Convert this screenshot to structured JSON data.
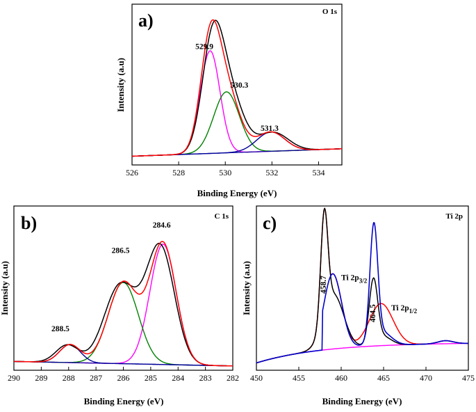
{
  "chart_data": [
    {
      "type": "line",
      "panel": "a)",
      "title": "O 1s",
      "xlabel": "Binding Energy (eV)",
      "ylabel": "Intensity (a.u)",
      "xlim": [
        526,
        535
      ],
      "ylim": [
        0,
        100
      ],
      "x_reversed": false,
      "xticks": [
        526,
        528,
        530,
        532,
        534
      ],
      "tick_labels": [
        "526",
        "528",
        "530",
        "532",
        "534"
      ],
      "background": {
        "start": 4,
        "end": 9
      },
      "components": [
        {
          "name": "529.9",
          "color": "#ff00ff",
          "center": 529.35,
          "amplitude": 69,
          "sigma": 0.42
        },
        {
          "name": "530.3",
          "color": "#008000",
          "center": 530.05,
          "amplitude": 41,
          "sigma": 0.55
        },
        {
          "name": "531.3",
          "color": "#000099",
          "center": 531.95,
          "amplitude": 13,
          "sigma": 0.6
        }
      ],
      "envelope_color": "#ff0000",
      "raw_color": "#000000",
      "raw_offset": 0.1,
      "annotations": [
        {
          "text": "529.9",
          "x": 529.1,
          "y": 76
        },
        {
          "text": "530.3",
          "x": 530.6,
          "y": 50
        },
        {
          "text": "531.3",
          "x": 531.9,
          "y": 21
        }
      ]
    },
    {
      "type": "line",
      "panel": "b)",
      "title": "C 1s",
      "xlabel": "Binding Energy (eV)",
      "ylabel": "Intensity (a.u)",
      "xlim": [
        290,
        282
      ],
      "ylim": [
        0,
        100
      ],
      "x_reversed": true,
      "xticks": [
        290,
        289,
        288,
        287,
        286,
        285,
        284,
        283,
        282
      ],
      "tick_labels": [
        "290",
        "289",
        "288",
        "287",
        "286",
        "285",
        "284",
        "283",
        "282"
      ],
      "background": {
        "start": 4,
        "end": 1
      },
      "components": [
        {
          "name": "284.6",
          "color": "#ff00ff",
          "center": 284.55,
          "amplitude": 80,
          "sigma": 0.48
        },
        {
          "name": "286.5",
          "color": "#008000",
          "center": 286.0,
          "amplitude": 54,
          "sigma": 0.55
        },
        {
          "name": "288.5",
          "color": "#000099",
          "center": 287.95,
          "amplitude": 12,
          "sigma": 0.38
        }
      ],
      "envelope_color": "#ff0000",
      "raw_color": "#000000",
      "raw_offset": 0.1,
      "annotations": [
        {
          "text": "284.6",
          "x": 284.6,
          "y": 93
        },
        {
          "text": "286.5",
          "x": 286.1,
          "y": 76
        },
        {
          "text": "288.5",
          "x": 288.3,
          "y": 24
        }
      ]
    },
    {
      "type": "line",
      "panel": "c)",
      "title": "Ti 2p",
      "xlabel": "Binding Energy (eV)",
      "ylabel": "Intensity (a.u)",
      "xlim": [
        450,
        475
      ],
      "ylim": [
        0,
        100
      ],
      "x_reversed": false,
      "xticks": [
        450,
        455,
        460,
        465,
        470,
        475
      ],
      "tick_labels": [
        "450",
        "455",
        "460",
        "465",
        "470",
        "475"
      ],
      "background": {
        "start": 3,
        "end": 16
      },
      "peaks": [
        {
          "name": "458.7",
          "label": "Ti 2p",
          "sublabel": "3/2"
        },
        {
          "name": "464.5",
          "label": "Ti 2p",
          "sublabel": "1/2"
        }
      ],
      "background_color": "#ff00ff",
      "envelope_color": "#ff0000",
      "raw_color": "#000000",
      "fit_color": "#0000cc",
      "annotations": [
        {
          "text": "458.7",
          "x": 458.2,
          "y": 55,
          "rotate": true
        },
        {
          "text": "464.5",
          "x": 464.0,
          "y": 36,
          "rotate": true
        }
      ]
    }
  ]
}
